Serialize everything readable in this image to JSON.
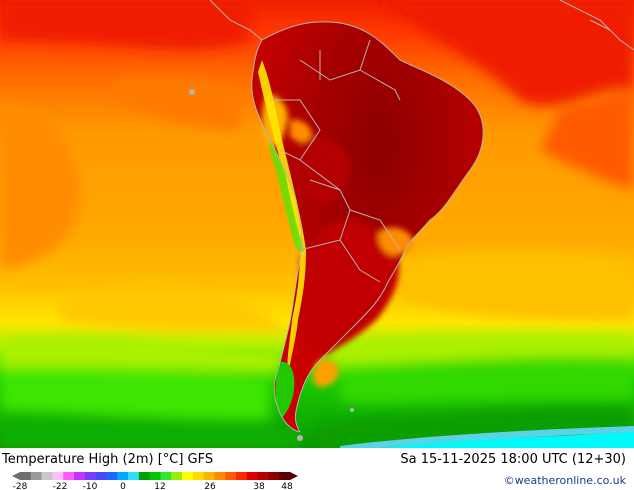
{
  "title": "Temperature High (2m) [°C] GFS",
  "datetime": "Sa 15-11-2025 18:00 UTC (12+30)",
  "credit": "©weatheronline.co.uk",
  "legend": {
    "tick_labels": [
      "-28",
      "-22",
      "-10",
      "0",
      "12",
      "26",
      "38",
      "48"
    ],
    "colors": [
      "#6e6e6e",
      "#9a9a9a",
      "#c8c8c8",
      "#ffbfff",
      "#ff5aff",
      "#c832ff",
      "#7a3cff",
      "#4646ff",
      "#1e64ff",
      "#00aaff",
      "#32dcff",
      "#00a000",
      "#00c800",
      "#32e632",
      "#96f000",
      "#ffff00",
      "#ffdc00",
      "#ffb400",
      "#ff8c00",
      "#ff5a00",
      "#ff2800",
      "#e10000",
      "#b40000",
      "#8c0000",
      "#5a0000"
    ]
  },
  "map": {
    "ocean_colors": [
      "#f01e00",
      "#ff5000",
      "#ff8800",
      "#ffa300",
      "#ffc000",
      "#ffe600",
      "#b4f000",
      "#4ae600",
      "#18c800",
      "#10b400",
      "#0a9600",
      "#00fafa"
    ],
    "land_colors": [
      "#a00000",
      "#c80000",
      "#e10000"
    ],
    "border_color": "#b4b4b4"
  }
}
